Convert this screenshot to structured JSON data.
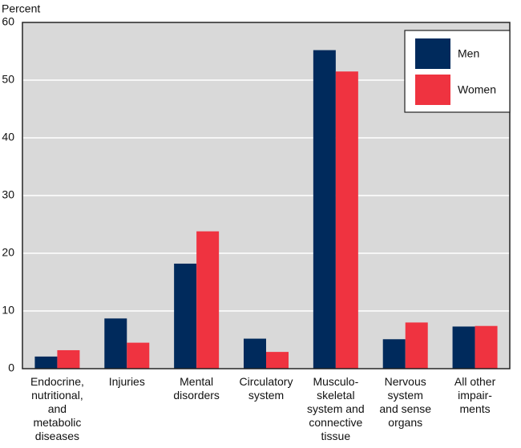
{
  "chart_data": {
    "type": "bar",
    "y_label": "Percent",
    "categories": [
      "Endocrine,\nnutritional,\nand\nmetabolic\ndiseases",
      "Injuries",
      "Mental\ndisorders",
      "Circulatory\nsystem",
      "Musculo-\nskeletal\nsystem and\nconnective\ntissue",
      "Nervous\nsystem\nand sense\norgans",
      "All other\nimpair-\nments"
    ],
    "series": [
      {
        "name": "Men",
        "color": "#002a5c",
        "values": [
          2.1,
          8.7,
          18.2,
          5.2,
          55.2,
          5.1,
          7.3
        ]
      },
      {
        "name": "Women",
        "color": "#ef3340",
        "values": [
          3.2,
          4.5,
          23.8,
          2.9,
          51.5,
          8.0,
          7.4
        ]
      }
    ],
    "ylim": [
      0,
      60
    ],
    "yticks": [
      0,
      10,
      20,
      30,
      40,
      50,
      60
    ],
    "grid": true,
    "legend": "upper right"
  }
}
